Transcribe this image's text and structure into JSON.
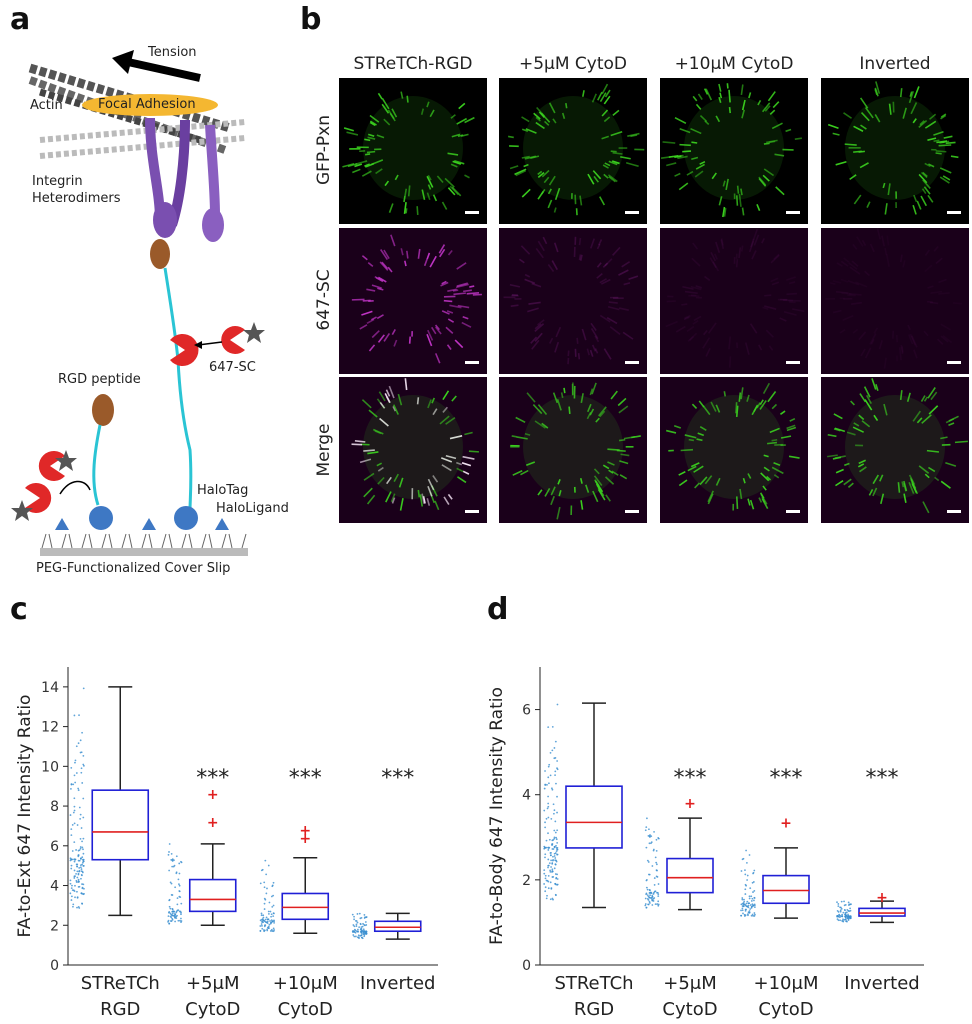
{
  "panels": {
    "a": "a",
    "b": "b",
    "c": "c",
    "d": "d"
  },
  "diagram": {
    "tension": "Tension",
    "actin": "Actin",
    "focal_adhesion": "Focal Adhesion",
    "integrin_1": "Integrin",
    "integrin_2": "Heterodimers",
    "sc647": "647-SC",
    "rgd": "RGD peptide",
    "halotag": "HaloTag",
    "haloligand": "HaloLigand",
    "coverslip": "PEG-Functionalized Cover Slip"
  },
  "micrographs": {
    "columns": [
      "STReTCh-RGD",
      "+5μM CytoD",
      "+10μM CytoD",
      "Inverted"
    ],
    "rows": [
      "GFP-Pxn",
      "647-SC",
      "Merge"
    ],
    "colors": {
      "green": "#3bd11f",
      "magenta": "#d23ad8",
      "background": "#000000"
    }
  },
  "chart_data": [
    {
      "type": "box",
      "panel": "c",
      "ylabel": "FA-to-Ext 647 Intensity Ratio",
      "categories": [
        [
          "STReTCh",
          "RGD"
        ],
        [
          "+5μM",
          "CytoD"
        ],
        [
          "+10μM",
          "CytoD"
        ],
        [
          "Inverted"
        ]
      ],
      "ylim": [
        0,
        15
      ],
      "yticks": [
        0,
        2,
        4,
        6,
        8,
        10,
        12,
        14
      ],
      "boxes": [
        {
          "min": 2.5,
          "q1": 5.3,
          "median": 6.7,
          "q3": 8.8,
          "max": 14.0,
          "outliers": []
        },
        {
          "min": 2.0,
          "q1": 2.7,
          "median": 3.3,
          "q3": 4.3,
          "max": 6.1,
          "outliers": [
            7.2,
            8.6
          ]
        },
        {
          "min": 1.6,
          "q1": 2.3,
          "median": 2.9,
          "q3": 3.6,
          "max": 5.4,
          "outliers": [
            6.4,
            6.8
          ]
        },
        {
          "min": 1.3,
          "q1": 1.7,
          "median": 1.9,
          "q3": 2.2,
          "max": 2.6,
          "outliers": []
        }
      ],
      "significance": [
        "",
        "***",
        "***",
        "***"
      ],
      "colors": {
        "box": "#1f1fd6",
        "median": "#e02020",
        "whisker": "#222222",
        "outlier": "#e02020",
        "dots": "#3a8fd0"
      }
    },
    {
      "type": "box",
      "panel": "d",
      "ylabel": "FA-to-Body 647 Intensity Ratio",
      "categories": [
        [
          "STReTCh",
          "RGD"
        ],
        [
          "+5μM",
          "CytoD"
        ],
        [
          "+10μM",
          "CytoD"
        ],
        [
          "Inverted"
        ]
      ],
      "ylim": [
        0,
        7
      ],
      "yticks": [
        0,
        2,
        4,
        6
      ],
      "boxes": [
        {
          "min": 1.35,
          "q1": 2.75,
          "median": 3.35,
          "q3": 4.2,
          "max": 6.15,
          "outliers": []
        },
        {
          "min": 1.3,
          "q1": 1.7,
          "median": 2.05,
          "q3": 2.5,
          "max": 3.45,
          "outliers": [
            3.8
          ]
        },
        {
          "min": 1.1,
          "q1": 1.45,
          "median": 1.75,
          "q3": 2.1,
          "max": 2.75,
          "outliers": [
            3.35
          ]
        },
        {
          "min": 1.0,
          "q1": 1.15,
          "median": 1.22,
          "q3": 1.33,
          "max": 1.5,
          "outliers": [
            1.6
          ]
        }
      ],
      "significance": [
        "",
        "***",
        "***",
        "***"
      ],
      "colors": {
        "box": "#1f1fd6",
        "median": "#e02020",
        "whisker": "#222222",
        "outlier": "#e02020",
        "dots": "#3a8fd0"
      }
    }
  ]
}
